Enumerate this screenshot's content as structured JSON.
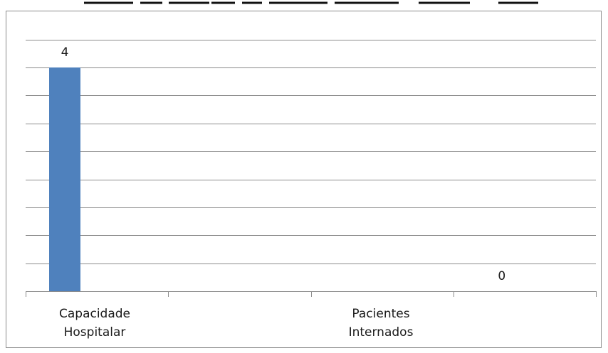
{
  "chart_data": {
    "type": "bar",
    "title": "",
    "xlabel": "",
    "ylabel": "",
    "categories": [
      "Capacidade Hospitalar",
      "Pacientes Internados"
    ],
    "category_lines": [
      [
        "Capacidade",
        "Hospitalar"
      ],
      [
        "Pacientes",
        "Internados"
      ]
    ],
    "values": [
      4,
      0
    ],
    "data_labels": [
      "4",
      "0"
    ],
    "ylim": [
      0,
      4.8
    ],
    "gridlines": true,
    "legend": "none",
    "bar_color": "#4f81bd",
    "grid_color": "#8c8c8c"
  }
}
